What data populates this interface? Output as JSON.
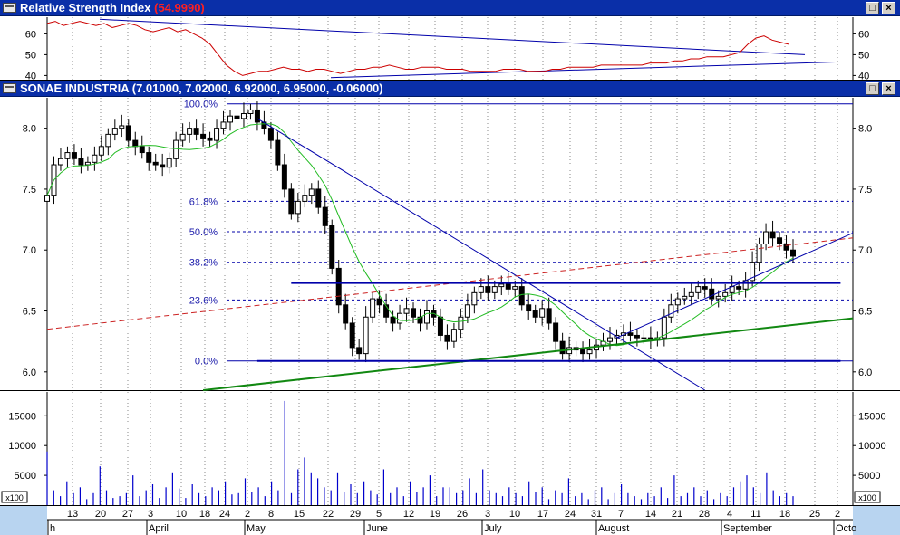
{
  "rsi_pane": {
    "title": "Relative Strength Index",
    "value_text": "(54.9990)",
    "buttons": {
      "restore": "□",
      "close": "×"
    }
  },
  "price_pane": {
    "title": "SONAE INDUSTRIA",
    "values_text": "(7.01000, 7.02000, 6.92000, 6.95000, -0.06000)",
    "buttons": {
      "restore": "□",
      "close": "×"
    }
  },
  "colors": {
    "title_bar": "#0a2fa8",
    "rsi_line": "#cc0000",
    "moving_average": "#22bb22",
    "trend_line": "#0000aa",
    "support_line": "#118811",
    "resistance_dashed": "#cc2222",
    "volume_bar": "#0000cc"
  },
  "chart_data": {
    "type": "candlestick",
    "instrument": "SONAE INDUSTRIA",
    "last_ohlc_change": {
      "open": 7.01,
      "high": 7.02,
      "low": 6.92,
      "close": 6.95,
      "change": -0.06
    },
    "x_axis": {
      "day_labels": [
        "13",
        "20",
        "27",
        "3",
        "10",
        "18",
        "24",
        "2",
        "8",
        "15",
        "22",
        "29",
        "5",
        "12",
        "19",
        "26",
        "3",
        "10",
        "17",
        "24",
        "31",
        "7",
        "14",
        "21",
        "28",
        "4",
        "11",
        "18",
        "25",
        "2"
      ],
      "month_labels": [
        "h",
        "April",
        "May",
        "June",
        "July",
        "August",
        "September",
        "Octo"
      ]
    },
    "rsi": {
      "title": "Relative Strength Index",
      "value": 54.999,
      "y_ticks": [
        40,
        50,
        60
      ],
      "ylim": [
        38,
        68
      ],
      "values": [
        65,
        66,
        64,
        65,
        66,
        65,
        64,
        65,
        63,
        64,
        65,
        64,
        62,
        61,
        62,
        63,
        61,
        62,
        60,
        58,
        55,
        50,
        45,
        42,
        40,
        41,
        42,
        42,
        43,
        44,
        43,
        43,
        42,
        43,
        43,
        42,
        41,
        42,
        43,
        43,
        44,
        44,
        45,
        44,
        43,
        43,
        44,
        44,
        44,
        43,
        43,
        43,
        42,
        42,
        42,
        42,
        43,
        43,
        43,
        42,
        42,
        42,
        43,
        43,
        44,
        44,
        44,
        44,
        45,
        45,
        45,
        45,
        45,
        45,
        46,
        46,
        46,
        47,
        47,
        48,
        48,
        49,
        49,
        49,
        50,
        51,
        55,
        58,
        59,
        57,
        56,
        55
      ]
    },
    "price": {
      "y_ticks": [
        6.0,
        6.5,
        7.0,
        7.5,
        8.0
      ],
      "ylim": [
        5.85,
        8.25
      ],
      "close": [
        7.45,
        7.7,
        7.75,
        7.8,
        7.75,
        7.7,
        7.72,
        7.78,
        7.85,
        7.95,
        8.0,
        8.02,
        7.9,
        7.85,
        7.8,
        7.72,
        7.7,
        7.68,
        7.75,
        7.9,
        7.95,
        8.0,
        7.95,
        7.92,
        7.9,
        8.0,
        8.05,
        8.1,
        8.08,
        8.12,
        8.15,
        8.05,
        8.0,
        7.9,
        7.7,
        7.5,
        7.3,
        7.4,
        7.45,
        7.5,
        7.35,
        7.2,
        6.85,
        6.55,
        6.4,
        6.2,
        6.15,
        6.45,
        6.6,
        6.55,
        6.45,
        6.4,
        6.48,
        6.52,
        6.45,
        6.4,
        6.5,
        6.45,
        6.3,
        6.25,
        6.35,
        6.45,
        6.55,
        6.65,
        6.7,
        6.65,
        6.7,
        6.72,
        6.68,
        6.7,
        6.55,
        6.5,
        6.45,
        6.52,
        6.4,
        6.25,
        6.15,
        6.2,
        6.18,
        6.15,
        6.18,
        6.22,
        6.25,
        6.28,
        6.3,
        6.32,
        6.3,
        6.28,
        6.28,
        6.26,
        6.28,
        6.45,
        6.55,
        6.6,
        6.62,
        6.65,
        6.7,
        6.68,
        6.6,
        6.62,
        6.65,
        6.7,
        6.68,
        6.75,
        6.9,
        7.05,
        7.15,
        7.1,
        7.05,
        7.0,
        6.95
      ],
      "fibonacci": {
        "high": 8.2,
        "low": 6.09,
        "levels": [
          {
            "label": "100.0%",
            "value": 8.2
          },
          {
            "label": "61.8%",
            "value": 7.4
          },
          {
            "label": "50.0%",
            "value": 7.15
          },
          {
            "label": "38.2%",
            "value": 6.9
          },
          {
            "label": "23.6%",
            "value": 6.59
          },
          {
            "label": "0.0%",
            "value": 6.09
          }
        ]
      },
      "trend_lines": [
        {
          "kind": "downtrend",
          "from": {
            "i": 31,
            "v": 8.08
          },
          "to": {
            "i": 97,
            "v": 5.85
          }
        },
        {
          "kind": "resistance_dashed",
          "from": {
            "i": 0,
            "v": 6.35
          },
          "to": {
            "i": 129,
            "v": 7.1
          }
        },
        {
          "kind": "support",
          "from": {
            "i": 23,
            "v": 5.85
          },
          "to": {
            "i": 129,
            "v": 6.44
          }
        },
        {
          "kind": "horizontal_resistance",
          "from": {
            "i": 36,
            "v": 6.73
          },
          "to": {
            "i": 117,
            "v": 6.73
          }
        },
        {
          "kind": "horizontal_support",
          "from": {
            "i": 31,
            "v": 6.09
          },
          "to": {
            "i": 117,
            "v": 6.09
          }
        },
        {
          "kind": "uptrend",
          "from": {
            "i": 84,
            "v": 6.28
          },
          "to": {
            "i": 129,
            "v": 7.14
          }
        }
      ]
    },
    "volume": {
      "y_ticks": [
        5000,
        10000,
        15000
      ],
      "ylim": [
        0,
        19000
      ],
      "multiplier_label": "x100",
      "values": [
        9000,
        2500,
        1500,
        4000,
        2000,
        3000,
        1000,
        2000,
        6500,
        2500,
        1200,
        1500,
        2000,
        5000,
        1500,
        2500,
        3500,
        1200,
        3000,
        5500,
        2800,
        1200,
        3500,
        2000,
        1500,
        3000,
        2500,
        4000,
        1800,
        2000,
        4500,
        2200,
        3000,
        1500,
        4000,
        2500,
        17500,
        2000,
        6000,
        8000,
        5500,
        4500,
        3000,
        2500,
        5500,
        2200,
        3500,
        2000,
        4000,
        2500,
        1800,
        6000,
        2000,
        3000,
        1500,
        4000,
        2200,
        3000,
        5000,
        1500,
        3000,
        3000,
        2000,
        2500,
        4500,
        2000,
        6000,
        2500,
        2000,
        1500,
        3000,
        2000,
        1500,
        4000,
        2200,
        3000,
        1000,
        2500,
        2000,
        4500,
        1500,
        2000,
        1000,
        2500,
        3000,
        1000,
        2000,
        3500,
        2000,
        1500,
        1000,
        2000,
        1500,
        3000,
        1200,
        5000,
        1500,
        2000,
        3000,
        1500,
        2500,
        1000,
        2000,
        1500,
        3000,
        4000,
        5000,
        3000,
        2000,
        5500,
        2500,
        1500,
        2000,
        1500
      ]
    }
  }
}
